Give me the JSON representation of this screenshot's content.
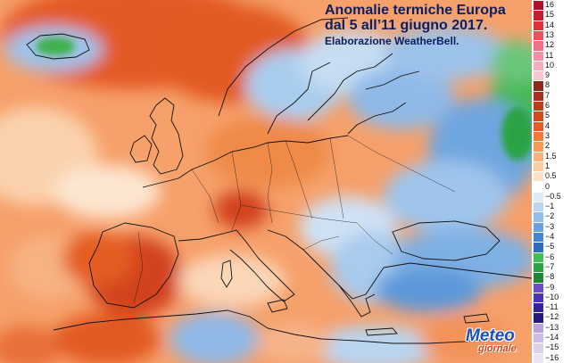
{
  "title": {
    "line1": "Anomalie termiche Europa",
    "line2": "dal 5 all’11 giugno 2017.",
    "line3": "Elaborazione WeatherBell."
  },
  "logo": {
    "line1": "Meteo",
    "line2": "giornale"
  },
  "legend": {
    "items": [
      {
        "label": "16",
        "color": "#b0102a"
      },
      {
        "label": "15",
        "color": "#c81c30"
      },
      {
        "label": "14",
        "color": "#e0303a"
      },
      {
        "label": "13",
        "color": "#ee5060"
      },
      {
        "label": "12",
        "color": "#f26f85"
      },
      {
        "label": "11",
        "color": "#f590a3"
      },
      {
        "label": "10",
        "color": "#f6adbc"
      },
      {
        "label": "9",
        "color": "#f5c8d0"
      },
      {
        "label": "8",
        "color": "#8a2a1c"
      },
      {
        "label": "7",
        "color": "#a4321d"
      },
      {
        "label": "6",
        "color": "#bf3d1e"
      },
      {
        "label": "5",
        "color": "#d24a1f"
      },
      {
        "label": "4",
        "color": "#e45d24"
      },
      {
        "label": "3",
        "color": "#ef7a35"
      },
      {
        "label": "2",
        "color": "#f59a55"
      },
      {
        "label": "1.5",
        "color": "#f8b47a"
      },
      {
        "label": "1",
        "color": "#facc9e"
      },
      {
        "label": "0.5",
        "color": "#fce2c5"
      },
      {
        "label": "0",
        "color": "#ffffff"
      },
      {
        "label": "−0.5",
        "color": "#ddeaf8"
      },
      {
        "label": "−1",
        "color": "#bcd6f2"
      },
      {
        "label": "−2",
        "color": "#95bde9"
      },
      {
        "label": "−3",
        "color": "#6aa1de"
      },
      {
        "label": "−4",
        "color": "#4586d1"
      },
      {
        "label": "−5",
        "color": "#2e6cc0"
      },
      {
        "label": "−6",
        "color": "#3fbf53"
      },
      {
        "label": "−7",
        "color": "#2aa344"
      },
      {
        "label": "−8",
        "color": "#1d8736"
      },
      {
        "label": "−9",
        "color": "#6a4ec9"
      },
      {
        "label": "−10",
        "color": "#4c34b1"
      },
      {
        "label": "−11",
        "color": "#35229a"
      },
      {
        "label": "−12",
        "color": "#26187f"
      },
      {
        "label": "−13",
        "color": "#bba0de"
      },
      {
        "label": "−14",
        "color": "#cfbbe7"
      },
      {
        "label": "−15",
        "color": "#ddd0ee"
      },
      {
        "label": "−16",
        "color": "#ebe3f5"
      }
    ]
  }
}
